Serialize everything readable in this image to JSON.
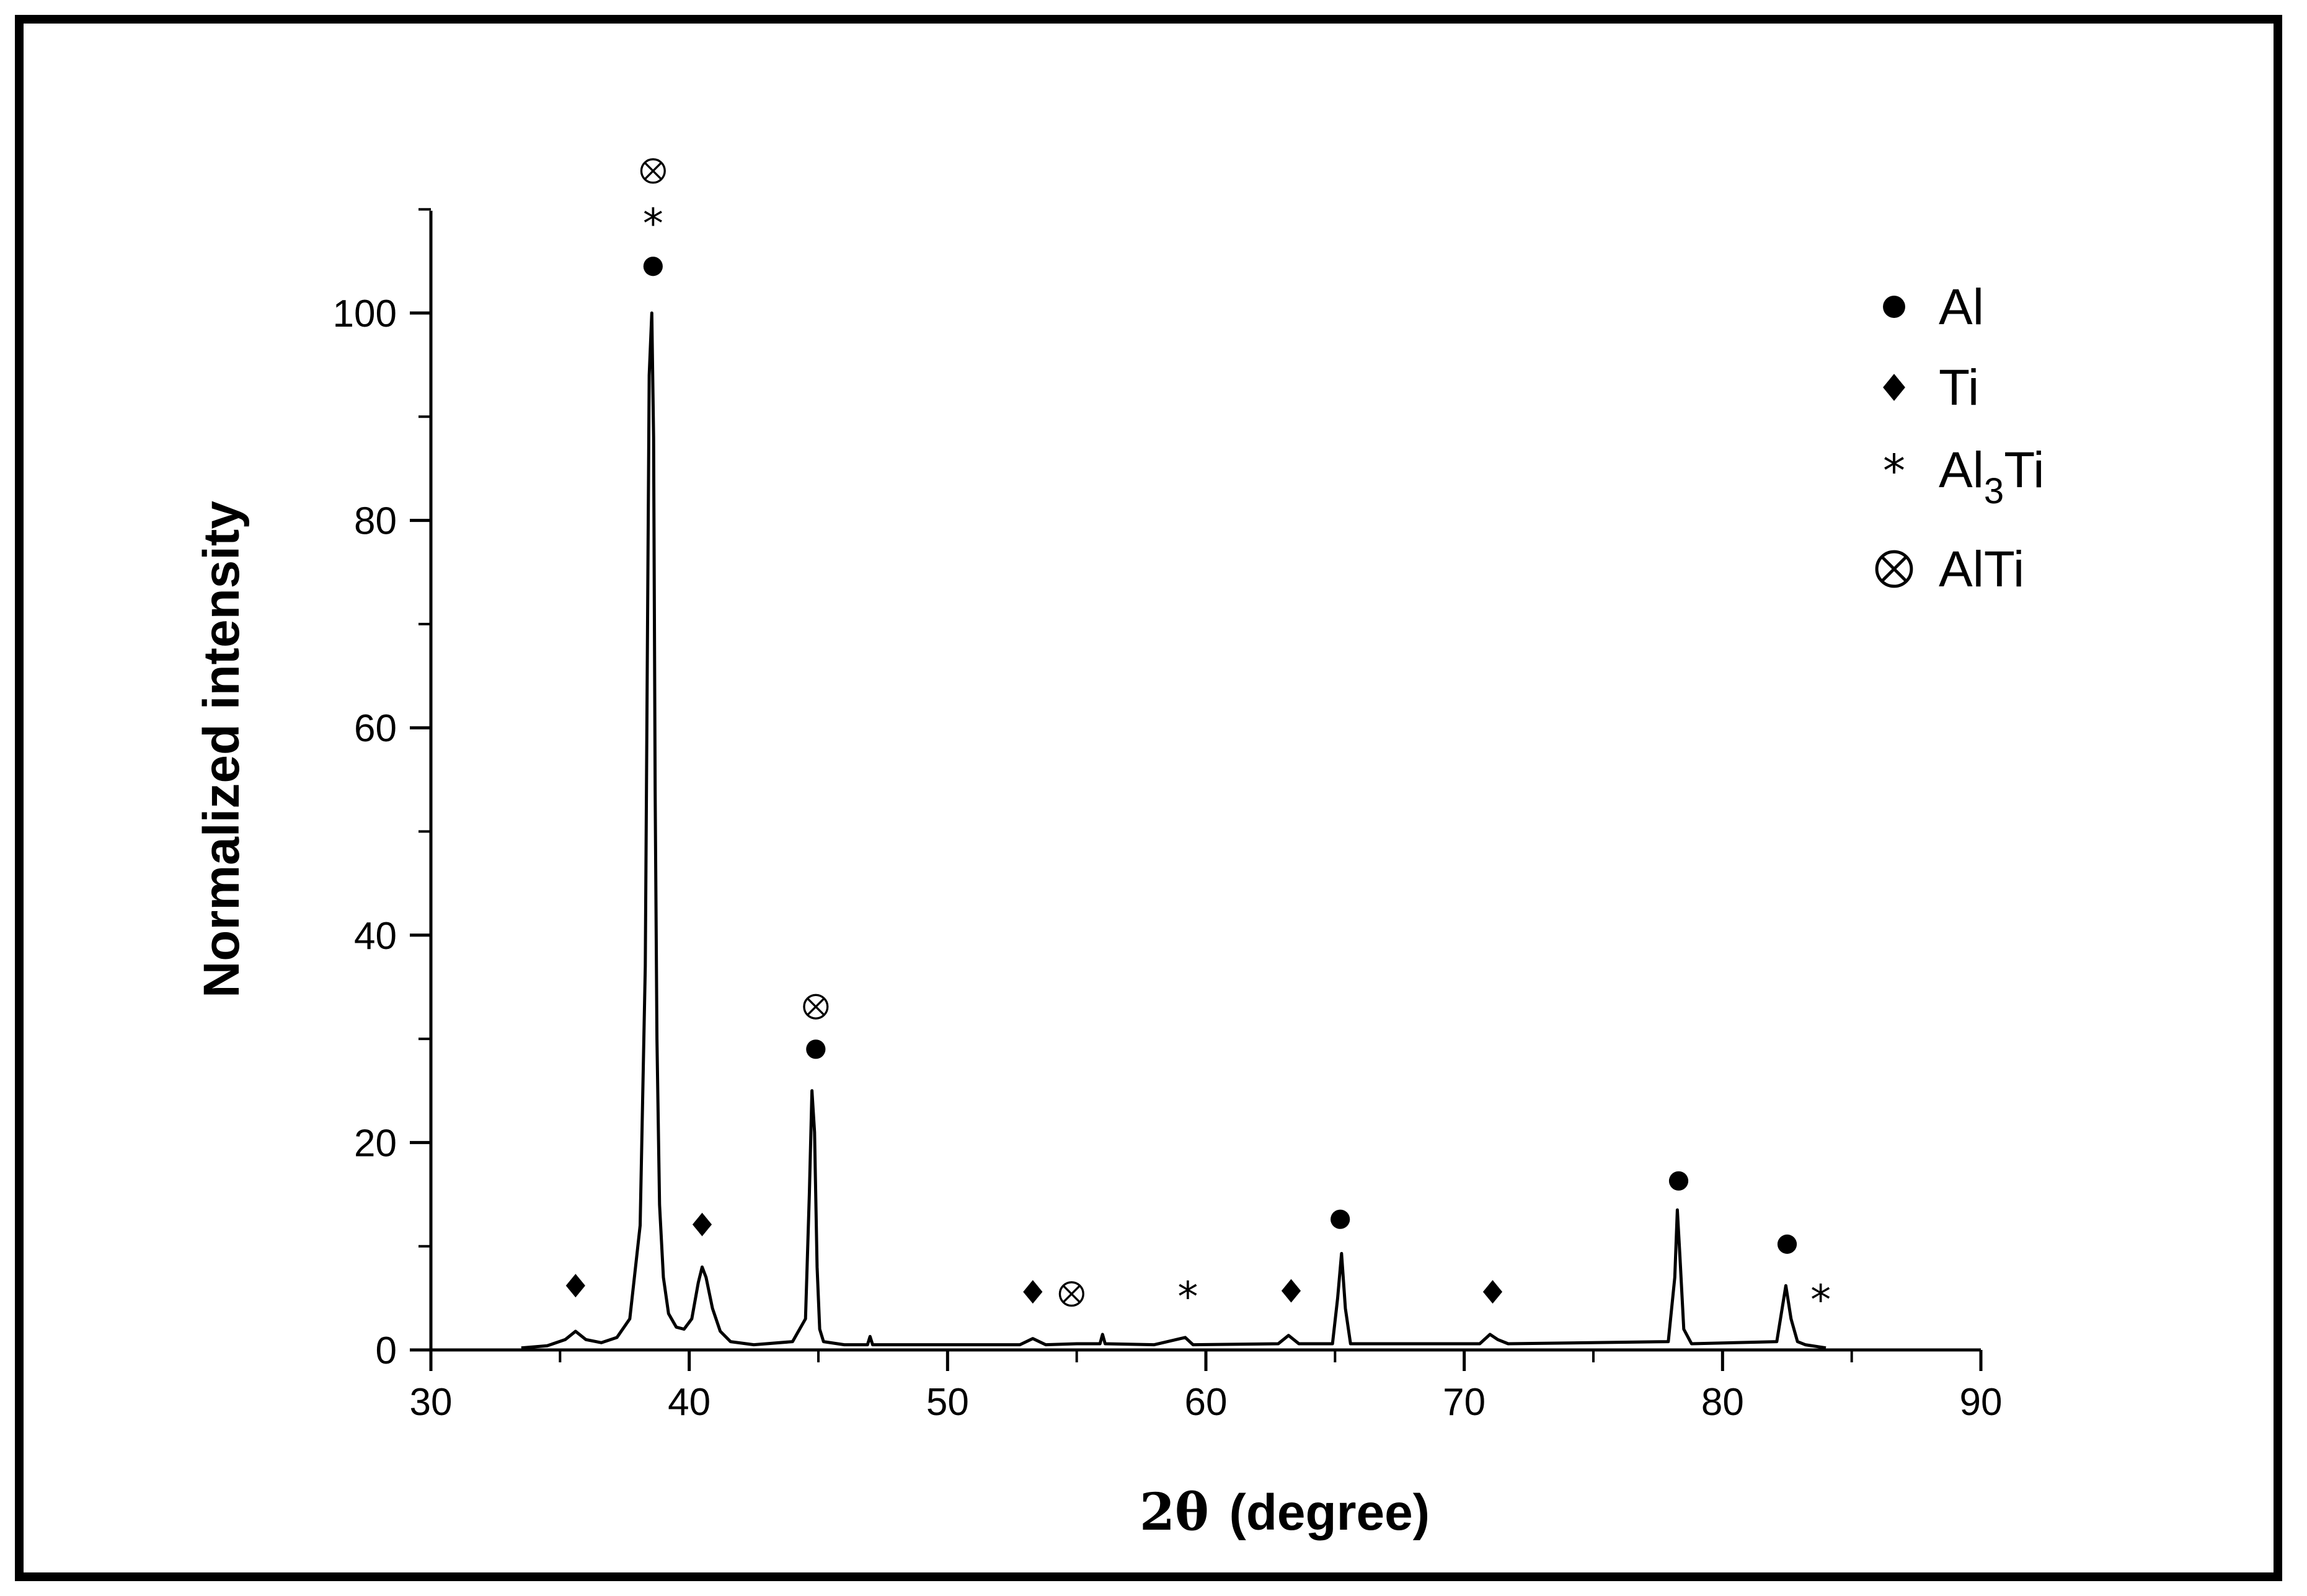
{
  "chart_data": {
    "type": "line",
    "title": "",
    "xlabel": "2θ (degree)",
    "xlabel_parts": {
      "symbol": "2θ",
      "unit": "(degree)"
    },
    "ylabel": "Normalized intensity",
    "xlim": [
      30,
      90
    ],
    "ylim": [
      0,
      110
    ],
    "xticks": [
      30,
      40,
      50,
      60,
      70,
      80,
      90
    ],
    "yticks": [
      0,
      20,
      40,
      60,
      80,
      100
    ],
    "grid": false,
    "legend_position": "top-right",
    "legend": [
      {
        "key": "al",
        "symbol": "circle",
        "label": "Al"
      },
      {
        "key": "ti",
        "symbol": "diamond",
        "label": "Ti"
      },
      {
        "key": "al3ti",
        "symbol": "asterisk",
        "label_main": "Al",
        "label_sub": "3",
        "label_rest": "Ti"
      },
      {
        "key": "alti",
        "symbol": "otimes",
        "label": "AlTi"
      }
    ],
    "series": [
      {
        "x": [
          33.5,
          34.5,
          35.2,
          35.6,
          36.0,
          36.6,
          37.2,
          37.7,
          38.1,
          38.3,
          38.45,
          38.55,
          38.62,
          38.68,
          38.75,
          38.85,
          39.0,
          39.2,
          39.5,
          39.8,
          40.1,
          40.35,
          40.5,
          40.65,
          40.9,
          41.2,
          41.6,
          42.5,
          44.0,
          44.5,
          44.65,
          44.75,
          44.85,
          44.95,
          45.05,
          45.2,
          46.0,
          46.9,
          47.0,
          47.1,
          48.0,
          52.8,
          53.3,
          53.8,
          55.0,
          55.9,
          56.0,
          56.1,
          58.0,
          59.2,
          59.5,
          62.8,
          63.2,
          63.6,
          64.9,
          65.1,
          65.25,
          65.4,
          65.6,
          70.6,
          71.0,
          71.3,
          71.7,
          77.9,
          78.15,
          78.25,
          78.35,
          78.5,
          78.8,
          82.1,
          82.45,
          82.65,
          82.9,
          83.2,
          84.0
        ],
        "y": [
          0.2,
          0.4,
          1.0,
          1.8,
          1.0,
          0.7,
          1.2,
          3.0,
          12.0,
          37.0,
          94.0,
          100.0,
          88.0,
          54.0,
          30.0,
          14.0,
          7.0,
          3.5,
          2.2,
          2.0,
          3.0,
          6.5,
          8.0,
          7.0,
          4.0,
          1.8,
          0.8,
          0.5,
          0.8,
          3.0,
          15.0,
          25.0,
          21.0,
          8.0,
          2.0,
          0.8,
          0.5,
          0.5,
          1.3,
          0.5,
          0.5,
          0.5,
          1.1,
          0.5,
          0.6,
          0.6,
          1.5,
          0.6,
          0.5,
          1.2,
          0.5,
          0.6,
          1.4,
          0.6,
          0.6,
          5.0,
          9.3,
          4.0,
          0.6,
          0.6,
          1.5,
          1.0,
          0.6,
          0.8,
          7.0,
          13.5,
          9.0,
          2.0,
          0.6,
          0.8,
          6.2,
          3.0,
          0.8,
          0.5,
          0.2
        ]
      }
    ],
    "annotations": [
      {
        "x": 38.6,
        "y": 104.5,
        "symbol": "circle"
      },
      {
        "x": 38.6,
        "y": 108.7,
        "symbol": "asterisk"
      },
      {
        "x": 38.6,
        "y": 113.7,
        "symbol": "otimes"
      },
      {
        "x": 44.9,
        "y": 29.0,
        "symbol": "circle"
      },
      {
        "x": 44.9,
        "y": 33.1,
        "symbol": "otimes"
      },
      {
        "x": 35.6,
        "y": 6.2,
        "symbol": "diamond"
      },
      {
        "x": 40.5,
        "y": 12.1,
        "symbol": "diamond"
      },
      {
        "x": 53.3,
        "y": 5.6,
        "symbol": "diamond"
      },
      {
        "x": 54.8,
        "y": 5.4,
        "symbol": "otimes"
      },
      {
        "x": 59.3,
        "y": 5.2,
        "symbol": "asterisk"
      },
      {
        "x": 63.3,
        "y": 5.7,
        "symbol": "diamond"
      },
      {
        "x": 65.2,
        "y": 12.6,
        "symbol": "circle"
      },
      {
        "x": 71.1,
        "y": 5.6,
        "symbol": "diamond"
      },
      {
        "x": 78.3,
        "y": 16.3,
        "symbol": "circle"
      },
      {
        "x": 82.5,
        "y": 10.2,
        "symbol": "circle"
      },
      {
        "x": 83.8,
        "y": 4.9,
        "symbol": "asterisk"
      }
    ]
  },
  "colors": {
    "line": "#000000",
    "frame": "#000000",
    "background": "#ffffff"
  },
  "glyphs": {
    "asterisk": "*",
    "otimes": "⊗"
  }
}
